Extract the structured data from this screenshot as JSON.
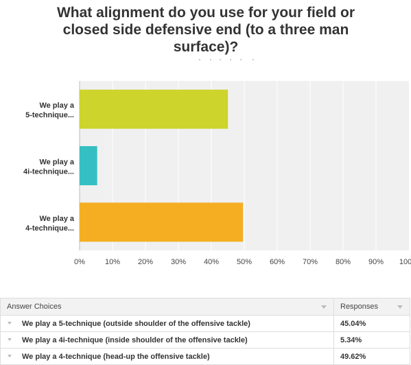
{
  "chart_data": {
    "type": "bar",
    "orientation": "horizontal",
    "title": "What alignment do you use for your field or closed side defensive end (to a three man surface)?",
    "categories": [
      "We play a 5-technique...",
      "We play a 4i-technique...",
      "We play a 4-technique..."
    ],
    "category_lines": [
      [
        "We play a",
        "5-technique..."
      ],
      [
        "We play a",
        "4i-technique..."
      ],
      [
        "We play a",
        "4-technique..."
      ]
    ],
    "values": [
      45.04,
      5.34,
      49.62
    ],
    "colors": [
      "#cdd42c",
      "#35bfc2",
      "#f5ae22"
    ],
    "xlim": [
      0,
      100
    ],
    "ticks": [
      0,
      10,
      20,
      30,
      40,
      50,
      60,
      70,
      80,
      90,
      100
    ],
    "tick_labels": [
      "0%",
      "10%",
      "20%",
      "30%",
      "40%",
      "50%",
      "60%",
      "70%",
      "80%",
      "90%",
      "100%"
    ],
    "grid": true,
    "legend": "none"
  },
  "table": {
    "headers": [
      "Answer Choices",
      "Responses"
    ],
    "rows": [
      {
        "choice": "We play a 5-technique (outside shoulder of the offensive tackle)",
        "response": "45.04%"
      },
      {
        "choice": "We play a 4i-technique (inside shoulder of the offensive tackle)",
        "response": "5.34%"
      },
      {
        "choice": "We play a 4-technique (head-up the offensive tackle)",
        "response": "49.62%"
      }
    ]
  },
  "colors": {
    "grid_background": "#f0f0f0",
    "grid_line": "#ffffff",
    "axis_line": "#bbbbbb",
    "header_background": "#f2f2f2"
  }
}
